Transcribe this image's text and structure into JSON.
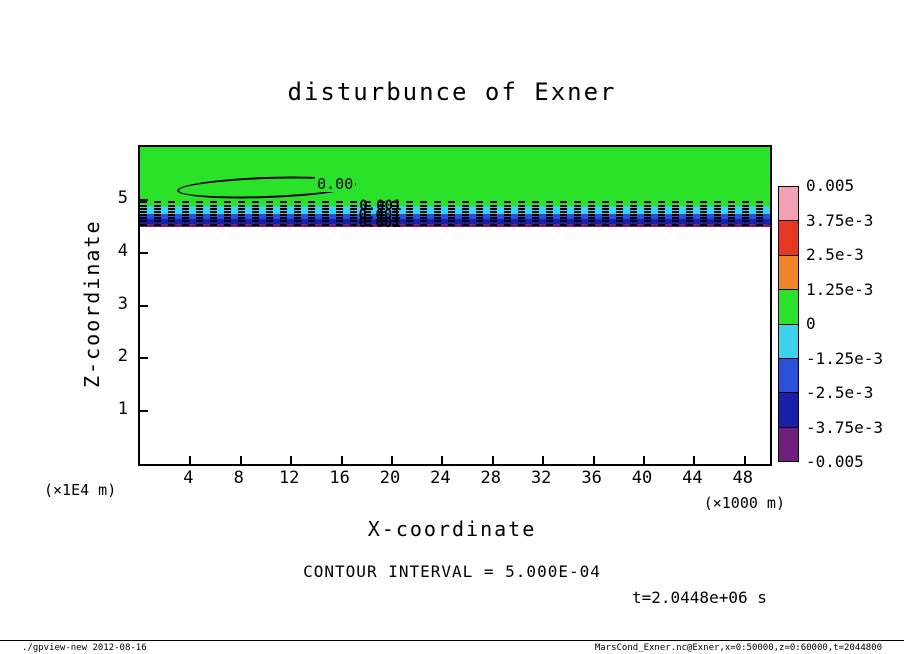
{
  "title": "disturbunce of Exner",
  "axes": {
    "x_label": "X-coordinate",
    "y_label": "Z-coordinate",
    "x_unit": "(×1000 m)",
    "y_unit": "(×1E4 m)"
  },
  "captions": {
    "contour_interval": "CONTOUR INTERVAL = 5.000E-04",
    "time": "t=2.0448e+06 s"
  },
  "footer": {
    "left": "./gpview-new  2012-08-16",
    "right": "MarsCond_Exner.nc@Exner,x=0:50000,z=0:60000,t=2044800"
  },
  "chart_data": {
    "type": "heatmap",
    "subtype": "filled-contour-with-line-contours",
    "title": "disturbunce of Exner",
    "xlabel": "X-coordinate",
    "ylabel": "Z-coordinate",
    "x_unit": "(×1000 m)",
    "y_unit": "(×1E4 m)",
    "x_range": [
      0,
      50
    ],
    "z_range": [
      0,
      6
    ],
    "x_ticks": [
      4,
      8,
      12,
      16,
      20,
      24,
      28,
      32,
      36,
      40,
      44,
      48
    ],
    "z_ticks": [
      1,
      2,
      3,
      4,
      5
    ],
    "contour_interval": 0.0005,
    "colorbar": {
      "tick_labels": [
        "0.005",
        "3.75e-3",
        "2.5e-3",
        "1.25e-3",
        "0",
        "-1.25e-3",
        "-2.5e-3",
        "-3.75e-3",
        "-0.005"
      ],
      "segment_colors_top_to_bottom": [
        "#f2a0b4",
        "#e83624",
        "#ef8428",
        "#2be22b",
        "#3cd2ee",
        "#2b50d8",
        "#1a1fa8",
        "#701f7e"
      ]
    },
    "field_bands": [
      {
        "z_top": 6.0,
        "z_bottom": 4.88,
        "value_band": "0 to 1.25e-3",
        "color": "#2be22b"
      },
      {
        "z_top": 4.88,
        "z_bottom": 4.73,
        "value_band": "-1.25e-3 to 0",
        "color": "#3cd2ee"
      },
      {
        "z_top": 4.73,
        "z_bottom": 4.63,
        "value_band": "-2.5e-3 to -1.25e-3",
        "color": "#2b50d8"
      },
      {
        "z_top": 4.63,
        "z_bottom": 4.55,
        "value_band": "-3.75e-3 to -2.5e-3",
        "color": "#1a1fa8"
      },
      {
        "z_top": 4.55,
        "z_bottom": 4.48,
        "value_band": "-0.005 to -3.75e-3",
        "color": "#701f7e"
      }
    ],
    "below_band_color": "#ffffff",
    "dashed_contour_z": [
      4.97,
      4.91,
      4.85,
      4.79,
      4.73,
      4.67,
      4.61,
      4.55
    ],
    "closed_contour": {
      "label": "0.00",
      "x_start": 2.9,
      "x_end": 16.8,
      "z_center": 5.27,
      "z_half_height": 0.16,
      "label_x": 13.9,
      "label_z": 5.3
    },
    "contour_point_labels": [
      {
        "text": "0.001",
        "x": 17.4,
        "z": 4.86
      },
      {
        "text": "0.001",
        "x": 17.35,
        "z": 4.7
      },
      {
        "text": "0.001",
        "x": 17.35,
        "z": 4.55
      }
    ]
  }
}
